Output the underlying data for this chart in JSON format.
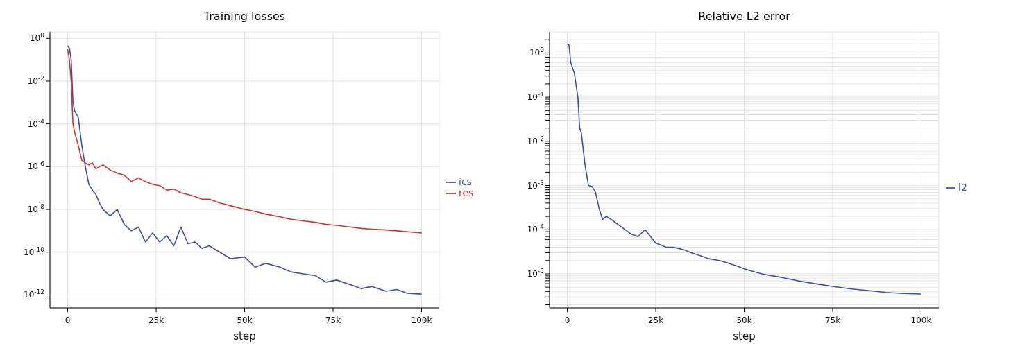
{
  "chart_data": [
    {
      "type": "line",
      "title": "Training losses",
      "xlabel": "step",
      "log": "y",
      "grid": true,
      "legend": "right",
      "xlim": [
        -5000,
        105000
      ],
      "xticks": [
        0,
        {
          "value": 25000,
          "label": "25k"
        },
        {
          "value": 50000,
          "label": "50k"
        },
        {
          "value": 75000,
          "label": "75k"
        },
        {
          "value": 100000,
          "label": "100k"
        }
      ],
      "ylim": [
        2.5e-13,
        2
      ],
      "yticks": [
        {
          "value": 1e-12,
          "label": "10$^{-12}$"
        },
        {
          "value": 1e-10,
          "label": "10$^{-10}$"
        },
        {
          "value": 1e-08,
          "label": "10$^{-8}$"
        },
        {
          "value": 1e-06,
          "label": "10$^{-6}$"
        },
        {
          "value": 0.0001,
          "label": "10$^{-4}$"
        },
        {
          "value": 0.01,
          "label": "10$^{-2}$"
        },
        {
          "value": 1,
          "label": "10$^{0}$"
        }
      ],
      "x": [
        0,
        500,
        1000,
        1500,
        2000,
        3000,
        4000,
        5000,
        6000,
        7000,
        8000,
        9000,
        10000,
        12000,
        14000,
        16000,
        18000,
        20000,
        22000,
        24000,
        26000,
        28000,
        30000,
        32000,
        34000,
        36000,
        38000,
        40000,
        43000,
        46000,
        50000,
        53000,
        56000,
        60000,
        63000,
        66000,
        70000,
        73000,
        76000,
        80000,
        83000,
        86000,
        90000,
        93000,
        96000,
        100000
      ],
      "series": [
        {
          "name": "ics",
          "color": "#3a4fb1",
          "values": [
            0.45,
            0.35,
            0.1,
            0.001,
            0.0004,
            0.0002,
            1e-05,
            1e-06,
            1.5e-07,
            8e-08,
            5e-08,
            2e-08,
            1e-08,
            5e-09,
            1e-08,
            2e-09,
            1e-09,
            1.5e-09,
            3e-10,
            8e-10,
            3e-10,
            6e-10,
            2e-10,
            1.5e-09,
            2.5e-10,
            3e-10,
            1.5e-10,
            2e-10,
            1e-10,
            5e-11,
            6e-11,
            2e-11,
            3e-11,
            2e-11,
            1.2e-11,
            1e-11,
            8e-12,
            4e-12,
            5e-12,
            3e-12,
            2e-12,
            2.5e-12,
            1.5e-12,
            1.8e-12,
            1.2e-12,
            1.1e-12
          ]
        },
        {
          "name": "res",
          "color": "#d1342c",
          "values": [
            0.3,
            0.1,
            0.01,
            0.0001,
            4e-05,
            1e-05,
            2e-06,
            1.5e-06,
            1.2e-06,
            1.5e-06,
            8e-07,
            1e-06,
            1.2e-06,
            7e-07,
            5e-07,
            4e-07,
            2e-07,
            3e-07,
            2e-07,
            1.5e-07,
            1.3e-07,
            8e-08,
            9e-08,
            6e-08,
            5e-08,
            4e-08,
            3e-08,
            3e-08,
            2e-08,
            1.5e-08,
            1e-08,
            8e-09,
            6e-09,
            4.5e-09,
            3.5e-09,
            3e-09,
            2.5e-09,
            2e-09,
            1.8e-09,
            1.5e-09,
            1.3e-09,
            1.2e-09,
            1.1e-09,
            1e-09,
            9e-10,
            8e-10
          ]
        }
      ]
    },
    {
      "type": "line",
      "title": "Relative L2 error",
      "xlabel": "step",
      "log": "y",
      "grid": true,
      "legend": "right",
      "xlim": [
        -5000,
        105000
      ],
      "xticks": [
        0,
        {
          "value": 25000,
          "label": "25k"
        },
        {
          "value": 50000,
          "label": "50k"
        },
        {
          "value": 75000,
          "label": "75k"
        },
        {
          "value": 100000,
          "label": "100k"
        }
      ],
      "ylim": [
        1.7e-06,
        3
      ],
      "yticks": [
        {
          "value": 2e-06,
          "label": null
        },
        {
          "value": 3e-06,
          "label": null
        },
        {
          "value": 4e-06,
          "label": null
        },
        {
          "value": 5e-06,
          "label": null
        },
        {
          "value": 6e-06,
          "label": null
        },
        {
          "value": 7e-06,
          "label": null
        },
        {
          "value": 8e-06,
          "label": null
        },
        {
          "value": 9e-06,
          "label": null
        },
        {
          "value": 1e-05,
          "label": "10$^{-5}$"
        },
        {
          "value": 2e-05,
          "label": null
        },
        {
          "value": 3e-05,
          "label": null
        },
        {
          "value": 4e-05,
          "label": null
        },
        {
          "value": 5e-05,
          "label": null
        },
        {
          "value": 6e-05,
          "label": null
        },
        {
          "value": 7e-05,
          "label": null
        },
        {
          "value": 8e-05,
          "label": null
        },
        {
          "value": 9e-05,
          "label": null
        },
        {
          "value": 0.0001,
          "label": "10$^{-4}$"
        },
        {
          "value": 0.0002,
          "label": null
        },
        {
          "value": 0.0003,
          "label": null
        },
        {
          "value": 0.0004,
          "label": null
        },
        {
          "value": 0.0005,
          "label": null
        },
        {
          "value": 0.0006,
          "label": null
        },
        {
          "value": 0.0007,
          "label": null
        },
        {
          "value": 0.0008,
          "label": null
        },
        {
          "value": 0.0009,
          "label": null
        },
        {
          "value": 0.001,
          "label": "10$^{-3}$"
        },
        {
          "value": 0.002,
          "label": null
        },
        {
          "value": 0.003,
          "label": null
        },
        {
          "value": 0.004,
          "label": null
        },
        {
          "value": 0.005,
          "label": null
        },
        {
          "value": 0.006,
          "label": null
        },
        {
          "value": 0.007,
          "label": null
        },
        {
          "value": 0.008,
          "label": null
        },
        {
          "value": 0.009,
          "label": null
        },
        {
          "value": 0.01,
          "label": "10$^{-2}$"
        },
        {
          "value": 0.02,
          "label": null
        },
        {
          "value": 0.03,
          "label": null
        },
        {
          "value": 0.04,
          "label": null
        },
        {
          "value": 0.05,
          "label": null
        },
        {
          "value": 0.06,
          "label": null
        },
        {
          "value": 0.07,
          "label": null
        },
        {
          "value": 0.08,
          "label": null
        },
        {
          "value": 0.09,
          "label": null
        },
        {
          "value": 0.1,
          "label": "10$^{-1}$"
        },
        {
          "value": 0.2,
          "label": null
        },
        {
          "value": 0.3,
          "label": null
        },
        {
          "value": 0.4,
          "label": null
        },
        {
          "value": 0.5,
          "label": null
        },
        {
          "value": 0.6,
          "label": null
        },
        {
          "value": 0.7,
          "label": null
        },
        {
          "value": 0.8,
          "label": null
        },
        {
          "value": 0.9,
          "label": null
        },
        {
          "value": 1,
          "label": "10$^{0}$"
        },
        {
          "value": 2,
          "label": null
        }
      ],
      "x": [
        0,
        500,
        1000,
        2000,
        3000,
        3500,
        4000,
        5000,
        6000,
        7000,
        8000,
        9000,
        10000,
        11000,
        12000,
        15000,
        18000,
        20000,
        22000,
        25000,
        28000,
        30000,
        33000,
        35000,
        38000,
        40000,
        43000,
        45000,
        48000,
        50000,
        53000,
        55000,
        58000,
        60000,
        65000,
        70000,
        75000,
        80000,
        85000,
        90000,
        95000,
        100000
      ],
      "series": [
        {
          "name": "l2",
          "color": "#3a4fb1",
          "values": [
            1.6,
            1.5,
            0.6,
            0.35,
            0.1,
            0.02,
            0.015,
            0.003,
            0.001,
            0.00095,
            0.0007,
            0.0003,
            0.00017,
            0.0002,
            0.00018,
            0.00012,
            8e-05,
            7e-05,
            0.0001,
            5e-05,
            4e-05,
            4e-05,
            3.5e-05,
            3e-05,
            2.5e-05,
            2.2e-05,
            2e-05,
            1.8e-05,
            1.5e-05,
            1.3e-05,
            1.1e-05,
            1e-05,
            9e-06,
            8.5e-06,
            7e-06,
            6e-06,
            5.2e-06,
            4.6e-06,
            4.2e-06,
            3.8e-06,
            3.6e-06,
            3.5e-06
          ]
        }
      ]
    }
  ]
}
